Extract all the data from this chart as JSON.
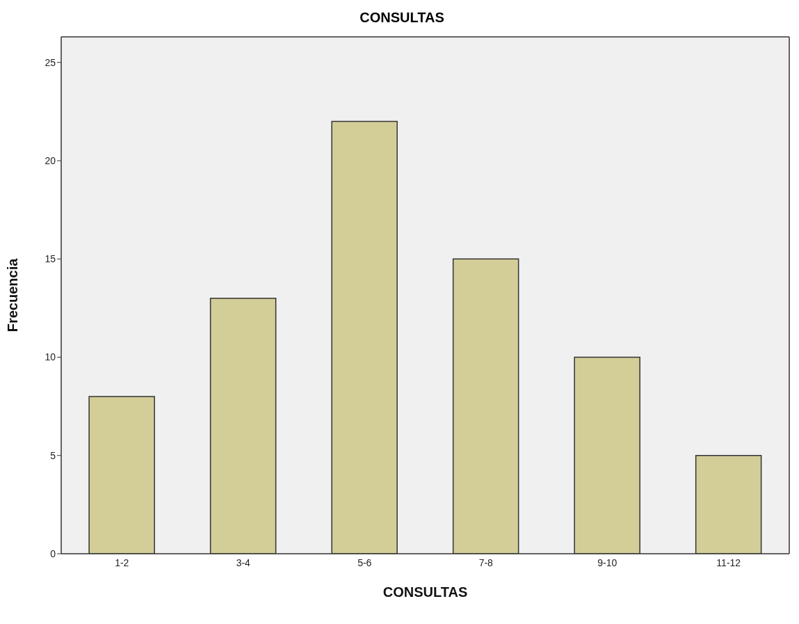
{
  "chart_data": {
    "type": "bar",
    "title": "CONSULTAS",
    "xlabel": "CONSULTAS",
    "ylabel": "Frecuencia",
    "categories": [
      "1-2",
      "3-4",
      "5-6",
      "7-8",
      "9-10",
      "11-12"
    ],
    "values": [
      8,
      13,
      22,
      15,
      10,
      5
    ],
    "color": "#d3cd98",
    "ylim": [
      0,
      26.3
    ],
    "yticks": [
      0,
      5,
      10,
      15,
      20,
      25
    ],
    "grid": false,
    "legend": false
  }
}
